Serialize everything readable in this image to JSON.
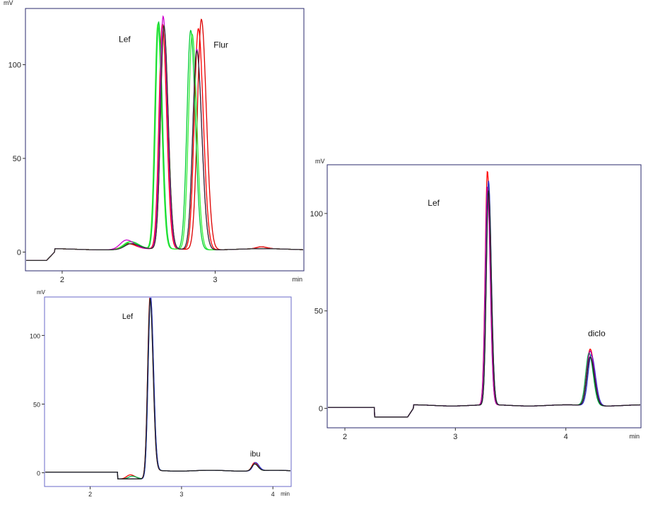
{
  "chart_data": [
    {
      "type": "line",
      "xunit": "min",
      "yunit": "mV",
      "xlim": [
        1.76,
        3.58
      ],
      "ylim": [
        -10,
        130
      ],
      "xticks": [
        2,
        3
      ],
      "yticks": [
        0,
        50,
        100
      ],
      "grid": false,
      "baseline_start": 1.0,
      "annotations": [
        {
          "text": "Lef",
          "x": 2.37,
          "y": 112
        },
        {
          "text": "Flur",
          "x": 2.99,
          "y": 109
        }
      ],
      "series": [
        {
          "color": "#ff0000",
          "baseline_end": 1.6,
          "peaks": [
            {
              "rt": 2.655,
              "h": 120,
              "w": 0.022
            },
            {
              "rt": 2.89,
              "h": 118,
              "w": 0.026
            },
            {
              "rt": 2.43,
              "h": 3,
              "w": 0.04
            },
            {
              "rt": 3.3,
              "h": 1,
              "w": 0.03
            }
          ]
        },
        {
          "color": "#dd0000",
          "baseline_end": 1.6,
          "peaks": [
            {
              "rt": 2.665,
              "h": 118,
              "w": 0.022
            },
            {
              "rt": 2.91,
              "h": 123,
              "w": 0.026
            },
            {
              "rt": 2.44,
              "h": 3,
              "w": 0.04
            },
            {
              "rt": 3.3,
              "h": 1,
              "w": 0.03
            }
          ]
        },
        {
          "color": "#00cc33",
          "baseline_end": 1.6,
          "peaks": [
            {
              "rt": 2.63,
              "h": 121,
              "w": 0.02
            },
            {
              "rt": 2.84,
              "h": 117,
              "w": 0.024
            },
            {
              "rt": 2.45,
              "h": 4,
              "w": 0.04
            }
          ]
        },
        {
          "color": "#33ee33",
          "baseline_end": 1.6,
          "peaks": [
            {
              "rt": 2.625,
              "h": 120,
              "w": 0.02
            },
            {
              "rt": 2.85,
              "h": 115,
              "w": 0.024
            },
            {
              "rt": 2.44,
              "h": 4,
              "w": 0.04
            }
          ]
        },
        {
          "color": "#cc00cc",
          "baseline_end": 1.6,
          "peaks": [
            {
              "rt": 2.66,
              "h": 124,
              "w": 0.022
            },
            {
              "rt": 2.88,
              "h": 107,
              "w": 0.026
            },
            {
              "rt": 2.42,
              "h": 5,
              "w": 0.04
            }
          ]
        },
        {
          "color": "#333333",
          "baseline_end": 1.6,
          "peaks": [
            {
              "rt": 2.665,
              "h": 119,
              "w": 0.022
            },
            {
              "rt": 2.88,
              "h": 106,
              "w": 0.026
            },
            {
              "rt": 2.45,
              "h": 3,
              "w": 0.04
            }
          ]
        }
      ]
    },
    {
      "type": "line",
      "xunit": "min",
      "yunit": "mV",
      "xlim": [
        1.5,
        4.2
      ],
      "ylim": [
        -10,
        128
      ],
      "xticks": [
        2,
        3,
        4
      ],
      "yticks": [
        0,
        50,
        100
      ],
      "grid": false,
      "baseline_start": 0.5,
      "annotations": [
        {
          "text": "Lef",
          "x": 2.35,
          "y": 112
        },
        {
          "text": "ibu",
          "x": 3.75,
          "y": 12
        }
      ],
      "series": [
        {
          "color": "#ff0000",
          "baseline_end": 2.3,
          "peaks": [
            {
              "rt": 2.655,
              "h": 128,
              "w": 0.026
            },
            {
              "rt": 2.44,
              "h": 3,
              "w": 0.04
            },
            {
              "rt": 3.8,
              "h": 6,
              "w": 0.03
            }
          ]
        },
        {
          "color": "#00aa44",
          "baseline_end": 2.3,
          "peaks": [
            {
              "rt": 2.66,
              "h": 126,
              "w": 0.026
            },
            {
              "rt": 2.46,
              "h": 2,
              "w": 0.04
            },
            {
              "rt": 3.8,
              "h": 5,
              "w": 0.03
            }
          ]
        },
        {
          "color": "#3333cc",
          "baseline_end": 2.3,
          "peaks": [
            {
              "rt": 2.66,
              "h": 127,
              "w": 0.026
            },
            {
              "rt": 3.81,
              "h": 6,
              "w": 0.03
            }
          ]
        },
        {
          "color": "#222222",
          "baseline_end": 2.3,
          "peaks": [
            {
              "rt": 2.655,
              "h": 125,
              "w": 0.026
            },
            {
              "rt": 3.8,
              "h": 5,
              "w": 0.03
            }
          ]
        }
      ]
    },
    {
      "type": "line",
      "xunit": "min",
      "yunit": "mV",
      "xlim": [
        1.84,
        4.68
      ],
      "ylim": [
        -10,
        125
      ],
      "xticks": [
        2,
        3,
        4
      ],
      "yticks": [
        0,
        50,
        100
      ],
      "grid": false,
      "baseline_start": 0.5,
      "annotations": [
        {
          "text": "Lef",
          "x": 2.75,
          "y": 104
        },
        {
          "text": "diclo",
          "x": 4.2,
          "y": 37
        }
      ],
      "series": [
        {
          "color": "#ff0000",
          "baseline_end": 2.27,
          "peaks": [
            {
              "rt": 3.29,
              "h": 120,
              "w": 0.02
            },
            {
              "rt": 4.22,
              "h": 29,
              "w": 0.03
            }
          ]
        },
        {
          "color": "#00aa44",
          "baseline_end": 2.27,
          "peaks": [
            {
              "rt": 3.3,
              "h": 113,
              "w": 0.02
            },
            {
              "rt": 4.21,
              "h": 27,
              "w": 0.03
            }
          ]
        },
        {
          "color": "#3333cc",
          "baseline_end": 2.27,
          "peaks": [
            {
              "rt": 3.3,
              "h": 115,
              "w": 0.02
            },
            {
              "rt": 4.23,
              "h": 26,
              "w": 0.03
            }
          ]
        },
        {
          "color": "#aa00aa",
          "baseline_end": 2.27,
          "peaks": [
            {
              "rt": 3.29,
              "h": 112,
              "w": 0.02
            },
            {
              "rt": 4.22,
              "h": 28,
              "w": 0.03
            }
          ]
        },
        {
          "color": "#222222",
          "baseline_end": 2.27,
          "peaks": [
            {
              "rt": 3.3,
              "h": 110,
              "w": 0.02
            },
            {
              "rt": 4.22,
              "h": 25,
              "w": 0.03
            }
          ]
        }
      ]
    }
  ]
}
